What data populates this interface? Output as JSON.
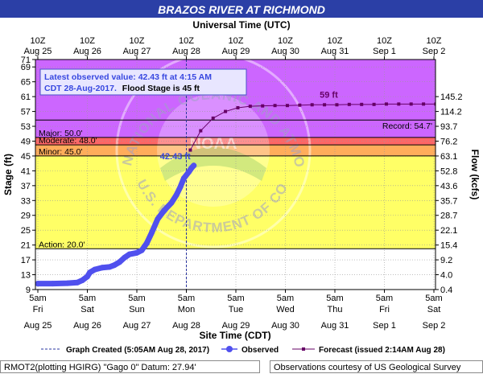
{
  "header": {
    "title": "BRAZOS RIVER AT RICHMOND",
    "top_axis_title": "Universal Time (UTC)",
    "bottom_axis_title": "Site Time (CDT)"
  },
  "top_ticks": [
    {
      "hour": "10Z",
      "date": "Aug 25"
    },
    {
      "hour": "10Z",
      "date": "Aug 26"
    },
    {
      "hour": "10Z",
      "date": "Aug 27"
    },
    {
      "hour": "10Z",
      "date": "Aug 28"
    },
    {
      "hour": "10Z",
      "date": "Aug 29"
    },
    {
      "hour": "10Z",
      "date": "Aug 30"
    },
    {
      "hour": "10Z",
      "date": "Aug 31"
    },
    {
      "hour": "10Z",
      "date": "Sep  1"
    },
    {
      "hour": "10Z",
      "date": "Sep  2"
    }
  ],
  "bottom_ticks": [
    {
      "time": "5am",
      "day": "Fri",
      "date": "Aug 25"
    },
    {
      "time": "5am",
      "day": "Sat",
      "date": "Aug 26"
    },
    {
      "time": "5am",
      "day": "Sun",
      "date": "Aug 27"
    },
    {
      "time": "5am",
      "day": "Mon",
      "date": "Aug 28"
    },
    {
      "time": "5am",
      "day": "Tue",
      "date": "Aug 29"
    },
    {
      "time": "5am",
      "day": "Wed",
      "date": "Aug 30"
    },
    {
      "time": "5am",
      "day": "Thu",
      "date": "Aug 31"
    },
    {
      "time": "5am",
      "day": "Fri",
      "date": "Sep  1"
    },
    {
      "time": "5am",
      "day": "Sat",
      "date": "Sep  2"
    }
  ],
  "info_box": {
    "line1": "Latest observed value: 42.43 ft at 4:15 AM",
    "line2_blue": "CDT 28-Aug-2017.",
    "line2_black": "Flood Stage is 45 ft"
  },
  "legend": {
    "graph_created": "Graph Created (5:05AM Aug 28, 2017)",
    "observed": "Observed",
    "forecast": "Forecast (issued 2:14AM Aug 28)"
  },
  "footer": {
    "left": "RMOT2(plotting HGIRG) \"Gago 0\" Datum: 27.94'",
    "right": "Observations courtesy of US Geological Survey"
  },
  "watermark": {
    "ring_text_top": "NATIONAL OCEANIC AND ATMOSPHERIC ADMINISTRATION",
    "ring_text_bottom": "U.S. DEPARTMENT OF COMMERCE",
    "center_text": "NOAA"
  },
  "colors": {
    "title_bar": "#2b3fa6",
    "major_band": "#cc66ff",
    "moderate_band": "#ff6666",
    "minor_band": "#ffad5b",
    "action_band": "#ffff66",
    "observed": "#5050ee",
    "forecast": "#660066",
    "record_line": "#000000"
  },
  "chart_data": {
    "type": "line",
    "x_unit": "days after 5am CDT Aug 25, 2017",
    "y_left_label": "Stage (ft)",
    "y_right_label": "Flow (kcfs)",
    "y_range": [
      9,
      71
    ],
    "y_ticks": [
      9,
      13,
      17,
      21,
      25,
      29,
      33,
      37,
      41,
      45,
      49,
      53,
      57,
      61,
      65,
      69,
      71
    ],
    "right_ticks": [
      {
        "stage": 9,
        "label": "0.4"
      },
      {
        "stage": 13,
        "label": "4.0"
      },
      {
        "stage": 17,
        "label": "9.2"
      },
      {
        "stage": 21,
        "label": "15.4"
      },
      {
        "stage": 25,
        "label": "22.1"
      },
      {
        "stage": 29,
        "label": "28.7"
      },
      {
        "stage": 33,
        "label": "35.7"
      },
      {
        "stage": 37,
        "label": "43.6"
      },
      {
        "stage": 41,
        "label": "52.8"
      },
      {
        "stage": 45,
        "label": "63.1"
      },
      {
        "stage": 49,
        "label": "76.2"
      },
      {
        "stage": 53,
        "label": "93.7"
      },
      {
        "stage": 57,
        "label": "114.2"
      },
      {
        "stage": 61,
        "label": "145.2"
      }
    ],
    "thresholds": [
      {
        "name": "Major",
        "label": "Major:  50.0'",
        "value": 50.0
      },
      {
        "name": "Moderate",
        "label": "Moderate:  48.0'",
        "value": 48.0
      },
      {
        "name": "Minor",
        "label": "Minor:  45.0'",
        "value": 45.0
      },
      {
        "name": "Action",
        "label": "Action:  20.0'",
        "value": 20.0
      }
    ],
    "record": {
      "label": "Record:  54.7'",
      "value": 54.7
    },
    "observed_label": "42.43 ft",
    "forecast_peak_label": "59 ft",
    "observed": [
      [
        0.0,
        10.6
      ],
      [
        0.3,
        10.6
      ],
      [
        0.6,
        10.7
      ],
      [
        0.8,
        10.9
      ],
      [
        0.9,
        11.5
      ],
      [
        1.0,
        12.5
      ],
      [
        1.05,
        13.6
      ],
      [
        1.15,
        14.4
      ],
      [
        1.3,
        14.9
      ],
      [
        1.45,
        15.1
      ],
      [
        1.55,
        15.6
      ],
      [
        1.65,
        16.4
      ],
      [
        1.75,
        17.6
      ],
      [
        1.85,
        18.5
      ],
      [
        2.0,
        18.9
      ],
      [
        2.1,
        19.6
      ],
      [
        2.2,
        21.5
      ],
      [
        2.3,
        24.3
      ],
      [
        2.42,
        28.0
      ],
      [
        2.55,
        30.3
      ],
      [
        2.7,
        32.4
      ],
      [
        2.8,
        34.5
      ],
      [
        2.88,
        36.7
      ],
      [
        2.95,
        39.0
      ],
      [
        3.05,
        40.7
      ],
      [
        3.1,
        41.7
      ],
      [
        3.15,
        42.43
      ]
    ],
    "forecast": [
      [
        3.08,
        46.6
      ],
      [
        3.29,
        51.8
      ],
      [
        3.54,
        55.2
      ],
      [
        3.79,
        57.0
      ],
      [
        4.04,
        58.0
      ],
      [
        4.29,
        58.4
      ],
      [
        4.54,
        58.5
      ],
      [
        4.79,
        58.6
      ],
      [
        5.04,
        58.6
      ],
      [
        5.29,
        58.7
      ],
      [
        5.54,
        58.8
      ],
      [
        5.79,
        58.8
      ],
      [
        6.04,
        58.8
      ],
      [
        6.29,
        58.9
      ],
      [
        6.54,
        58.9
      ],
      [
        6.79,
        58.9
      ],
      [
        7.04,
        59.0
      ],
      [
        7.29,
        59.0
      ],
      [
        7.54,
        59.0
      ],
      [
        7.79,
        59.0
      ],
      [
        8.04,
        59.0
      ]
    ],
    "graph_created_x": 3.0
  }
}
